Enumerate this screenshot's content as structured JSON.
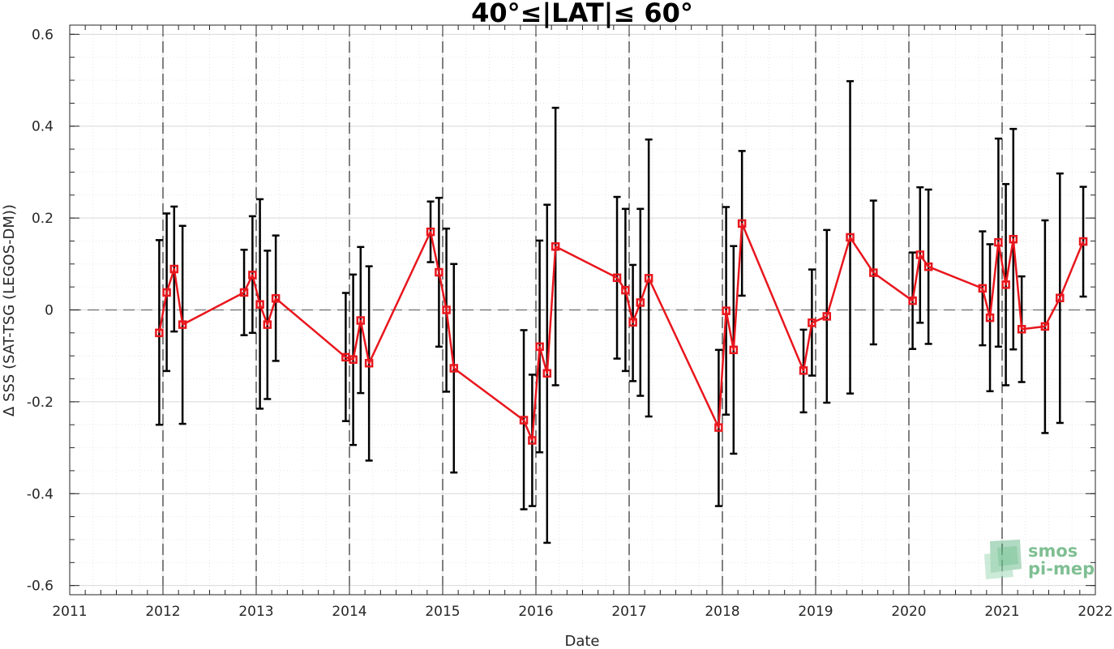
{
  "chart_data": {
    "type": "line",
    "title": "40°≤|LAT|≤ 60°",
    "xlabel": "Date",
    "ylabel": "Δ SSS (SAT-TSG (LEGOS-DM))",
    "xlim": [
      2011,
      2022
    ],
    "ylim": [
      -0.62,
      0.62
    ],
    "x_ticks": [
      "2011",
      "2012",
      "2013",
      "2014",
      "2015",
      "2016",
      "2017",
      "2018",
      "2019",
      "2020",
      "2021",
      "2022"
    ],
    "y_ticks": [
      "-0.6",
      "-0.4",
      "-0.2",
      "0",
      "0.2",
      "0.4",
      "0.6"
    ],
    "y_tick_values": [
      -0.6,
      -0.4,
      -0.2,
      0,
      0.2,
      0.4,
      0.6
    ],
    "grid": true,
    "year_dividers": [
      2012,
      2013,
      2014,
      2015,
      2016,
      2017,
      2018,
      2019,
      2020,
      2021
    ],
    "reference_line_y": 0,
    "series": [
      {
        "color": "#e8161d",
        "marker": "square",
        "points": [
          {
            "x": 2011.96,
            "y": -0.05,
            "lo": -0.25,
            "hi": 0.152
          },
          {
            "x": 2012.04,
            "y": 0.038,
            "lo": -0.133,
            "hi": 0.21
          },
          {
            "x": 2012.12,
            "y": 0.089,
            "lo": -0.047,
            "hi": 0.225
          },
          {
            "x": 2012.21,
            "y": -0.032,
            "lo": -0.248,
            "hi": 0.183
          },
          {
            "x": 2012.87,
            "y": 0.038,
            "lo": -0.055,
            "hi": 0.131
          },
          {
            "x": 2012.96,
            "y": 0.076,
            "lo": -0.05,
            "hi": 0.204
          },
          {
            "x": 2013.04,
            "y": 0.012,
            "lo": -0.215,
            "hi": 0.241
          },
          {
            "x": 2013.12,
            "y": -0.032,
            "lo": -0.194,
            "hi": 0.129
          },
          {
            "x": 2013.21,
            "y": 0.025,
            "lo": -0.111,
            "hi": 0.162
          },
          {
            "x": 2013.96,
            "y": -0.103,
            "lo": -0.242,
            "hi": 0.037
          },
          {
            "x": 2014.04,
            "y": -0.108,
            "lo": -0.294,
            "hi": 0.077
          },
          {
            "x": 2014.12,
            "y": -0.023,
            "lo": -0.181,
            "hi": 0.137
          },
          {
            "x": 2014.21,
            "y": -0.116,
            "lo": -0.328,
            "hi": 0.095
          },
          {
            "x": 2014.87,
            "y": 0.17,
            "lo": 0.104,
            "hi": 0.236
          },
          {
            "x": 2014.96,
            "y": 0.082,
            "lo": -0.08,
            "hi": 0.244
          },
          {
            "x": 2015.04,
            "y": 0.0,
            "lo": -0.178,
            "hi": 0.177
          },
          {
            "x": 2015.12,
            "y": -0.127,
            "lo": -0.354,
            "hi": 0.1
          },
          {
            "x": 2015.87,
            "y": -0.24,
            "lo": -0.434,
            "hi": -0.044
          },
          {
            "x": 2015.96,
            "y": -0.284,
            "lo": -0.427,
            "hi": -0.141
          },
          {
            "x": 2016.04,
            "y": -0.08,
            "lo": -0.31,
            "hi": 0.151
          },
          {
            "x": 2016.12,
            "y": -0.138,
            "lo": -0.507,
            "hi": 0.229
          },
          {
            "x": 2016.21,
            "y": 0.138,
            "lo": -0.164,
            "hi": 0.44
          },
          {
            "x": 2016.87,
            "y": 0.07,
            "lo": -0.106,
            "hi": 0.246
          },
          {
            "x": 2016.96,
            "y": 0.043,
            "lo": -0.133,
            "hi": 0.22
          },
          {
            "x": 2017.04,
            "y": -0.027,
            "lo": -0.155,
            "hi": 0.098
          },
          {
            "x": 2017.12,
            "y": 0.016,
            "lo": -0.187,
            "hi": 0.22
          },
          {
            "x": 2017.21,
            "y": 0.069,
            "lo": -0.232,
            "hi": 0.371
          },
          {
            "x": 2017.96,
            "y": -0.256,
            "lo": -0.427,
            "hi": -0.087
          },
          {
            "x": 2018.04,
            "y": -0.002,
            "lo": -0.228,
            "hi": 0.224
          },
          {
            "x": 2018.12,
            "y": -0.087,
            "lo": -0.313,
            "hi": 0.139
          },
          {
            "x": 2018.21,
            "y": 0.188,
            "lo": 0.031,
            "hi": 0.346
          },
          {
            "x": 2018.87,
            "y": -0.132,
            "lo": -0.223,
            "hi": -0.043
          },
          {
            "x": 2018.96,
            "y": -0.028,
            "lo": -0.143,
            "hi": 0.088
          },
          {
            "x": 2019.12,
            "y": -0.014,
            "lo": -0.202,
            "hi": 0.174
          },
          {
            "x": 2019.37,
            "y": 0.158,
            "lo": -0.182,
            "hi": 0.498
          },
          {
            "x": 2019.62,
            "y": 0.081,
            "lo": -0.075,
            "hi": 0.238
          },
          {
            "x": 2020.04,
            "y": 0.02,
            "lo": -0.085,
            "hi": 0.125
          },
          {
            "x": 2020.12,
            "y": 0.12,
            "lo": -0.028,
            "hi": 0.267
          },
          {
            "x": 2020.21,
            "y": 0.094,
            "lo": -0.074,
            "hi": 0.262
          },
          {
            "x": 2020.79,
            "y": 0.047,
            "lo": -0.077,
            "hi": 0.171
          },
          {
            "x": 2020.87,
            "y": -0.017,
            "lo": -0.177,
            "hi": 0.143
          },
          {
            "x": 2020.96,
            "y": 0.147,
            "lo": -0.08,
            "hi": 0.373
          },
          {
            "x": 2021.04,
            "y": 0.055,
            "lo": -0.164,
            "hi": 0.274
          },
          {
            "x": 2021.12,
            "y": 0.154,
            "lo": -0.086,
            "hi": 0.394
          },
          {
            "x": 2021.21,
            "y": -0.042,
            "lo": -0.157,
            "hi": 0.073
          },
          {
            "x": 2021.46,
            "y": -0.036,
            "lo": -0.268,
            "hi": 0.195
          },
          {
            "x": 2021.62,
            "y": 0.026,
            "lo": -0.246,
            "hi": 0.297
          },
          {
            "x": 2021.87,
            "y": 0.149,
            "lo": 0.029,
            "hi": 0.268
          }
        ]
      }
    ]
  },
  "logo": {
    "line1": "smos",
    "line2": "pi-mep",
    "text_color": "#7fbf93"
  },
  "colors": {
    "axis": "#262626",
    "grid_major": "#d9d9d9",
    "grid_minor": "#e6e6e6",
    "line": "#e8161d",
    "errorbar": "#000000",
    "reference_line": "#808080"
  }
}
